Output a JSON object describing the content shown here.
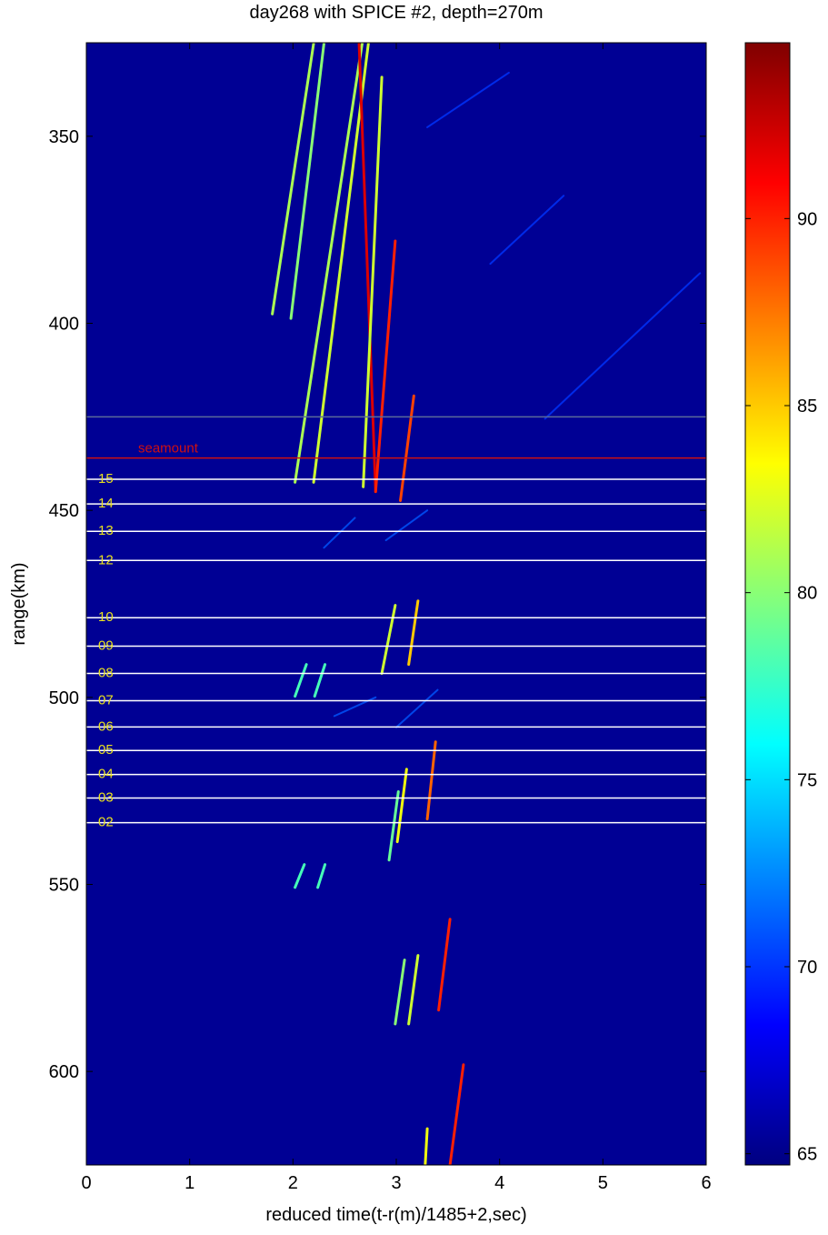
{
  "chart_data": {
    "type": "heatmap",
    "title": "day268 with SPICE #2, depth=270m",
    "x_label": "reduced time(t-r(m)/1485+2,sec)",
    "y_label": "range(km)",
    "xlim": [
      0,
      6
    ],
    "ylim": [
      325,
      625
    ],
    "y_reversed": true,
    "xticks": [
      0,
      1,
      2,
      3,
      4,
      5,
      6
    ],
    "yticks": [
      350,
      400,
      450,
      500,
      550,
      600
    ],
    "colormap": "jet",
    "clim": [
      64.7,
      94.7
    ],
    "cticks": [
      65,
      70,
      75,
      80,
      85,
      90
    ],
    "background_value": 65.3,
    "arrivals": [
      {
        "x": [
          1.8,
          2.2
        ],
        "y": [
          397.5,
          325.2
        ],
        "level": 81
      },
      {
        "x": [
          1.98,
          2.3
        ],
        "y": [
          398.7,
          325.2
        ],
        "level": 80
      },
      {
        "x": [
          2.02,
          2.67
        ],
        "y": [
          442.5,
          325.2
        ],
        "level": 81
      },
      {
        "x": [
          2.2,
          2.73
        ],
        "y": [
          442.5,
          325.2
        ],
        "level": 82
      },
      {
        "x": [
          2.64,
          2.8
        ],
        "y": [
          325.2,
          445.0
        ],
        "level": 92
      },
      {
        "x": [
          2.86,
          2.68
        ],
        "y": [
          334.2,
          443.7
        ],
        "level": 82
      },
      {
        "x": [
          2.99,
          2.8
        ],
        "y": [
          378.0,
          445.0
        ],
        "level": 90
      },
      {
        "x": [
          3.17,
          3.04
        ],
        "y": [
          419.4,
          447.4
        ],
        "level": 89
      },
      {
        "x": [
          2.99,
          2.86
        ],
        "y": [
          475.4,
          493.6
        ],
        "level": 82
      },
      {
        "x": [
          3.21,
          3.12
        ],
        "y": [
          474.2,
          491.2
        ],
        "level": 85
      },
      {
        "x": [
          2.13,
          2.02
        ],
        "y": [
          491.2,
          499.7
        ],
        "level": 78
      },
      {
        "x": [
          2.31,
          2.21
        ],
        "y": [
          491.2,
          499.7
        ],
        "level": 78
      },
      {
        "x": [
          3.38,
          3.3
        ],
        "y": [
          511.9,
          532.5
        ],
        "level": 88
      },
      {
        "x": [
          3.1,
          3.01
        ],
        "y": [
          519.2,
          538.6
        ],
        "level": 83
      },
      {
        "x": [
          3.02,
          2.93
        ],
        "y": [
          525.2,
          543.5
        ],
        "level": 79
      },
      {
        "x": [
          3.52,
          3.41
        ],
        "y": [
          559.3,
          583.6
        ],
        "level": 90
      },
      {
        "x": [
          3.21,
          3.12
        ],
        "y": [
          569.0,
          587.3
        ],
        "level": 82
      },
      {
        "x": [
          3.08,
          2.99
        ],
        "y": [
          570.2,
          587.3
        ],
        "level": 80
      },
      {
        "x": [
          3.65,
          3.52
        ],
        "y": [
          598.2,
          625.0
        ],
        "level": 90
      },
      {
        "x": [
          3.3,
          3.28
        ],
        "y": [
          615.3,
          625.0
        ],
        "level": 83
      },
      {
        "x": [
          2.31,
          2.24
        ],
        "y": [
          544.7,
          550.8
        ],
        "level": 78
      },
      {
        "x": [
          2.11,
          2.02
        ],
        "y": [
          544.7,
          550.8
        ],
        "level": 78
      },
      {
        "x": [
          3.3,
          4.09
        ],
        "y": [
          347.6,
          333.0
        ],
        "level": 70
      },
      {
        "x": [
          3.91,
          4.62
        ],
        "y": [
          384.1,
          365.9
        ],
        "level": 70
      },
      {
        "x": [
          4.44,
          5.94
        ],
        "y": [
          425.5,
          386.6
        ],
        "level": 70
      },
      {
        "x": [
          2.3,
          2.6
        ],
        "y": [
          460.0,
          452.0
        ],
        "level": 71
      },
      {
        "x": [
          2.9,
          3.3
        ],
        "y": [
          458.0,
          450.0
        ],
        "level": 71
      },
      {
        "x": [
          2.4,
          2.8
        ],
        "y": [
          505.0,
          500.0
        ],
        "level": 71
      },
      {
        "x": [
          3.0,
          3.4
        ],
        "y": [
          508.0,
          498.0
        ],
        "level": 71
      }
    ],
    "hlines": [
      {
        "y": 425,
        "color": "#5a6a9a"
      },
      {
        "y": 436,
        "color": "#d01010",
        "label": "seamount"
      },
      {
        "y": 441.7,
        "color": "#ffffff",
        "label": "15"
      },
      {
        "y": 448.3,
        "color": "#ffffff",
        "label": "14"
      },
      {
        "y": 455.6,
        "color": "#ffffff",
        "label": "13"
      },
      {
        "y": 463.4,
        "color": "#ffffff",
        "label": "12"
      },
      {
        "y": 478.7,
        "color": "#ffffff",
        "label": "10"
      },
      {
        "y": 486.3,
        "color": "#ffffff",
        "label": "09"
      },
      {
        "y": 493.6,
        "color": "#ffffff",
        "label": "08"
      },
      {
        "y": 500.9,
        "color": "#ffffff",
        "label": "07"
      },
      {
        "y": 507.9,
        "color": "#ffffff",
        "label": "06"
      },
      {
        "y": 514.2,
        "color": "#ffffff",
        "label": "05"
      },
      {
        "y": 520.6,
        "color": "#ffffff",
        "label": "04"
      },
      {
        "y": 526.9,
        "color": "#ffffff",
        "label": "03"
      },
      {
        "y": 533.5,
        "color": "#ffffff",
        "label": "02"
      }
    ]
  }
}
